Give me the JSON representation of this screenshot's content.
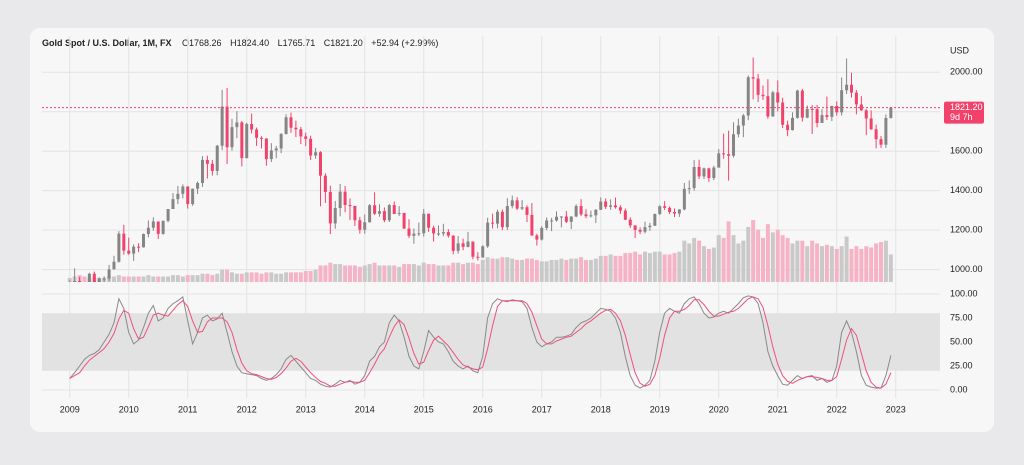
{
  "chart_data": {
    "type": "candlestick",
    "title": "Gold Spot / U.S. Dollar, 1M, FX",
    "header": {
      "open": "O1768.26",
      "high": "H1824.40",
      "low": "L1765.71",
      "close": "C1821.20",
      "change": "+52.94 (+2.99%)"
    },
    "unit": "USD",
    "price_tag": {
      "value": 1821.2,
      "label": "1821.20",
      "countdown": "9d 7h",
      "color": "#f2416b"
    },
    "up_color": "#858585",
    "down_color": "#f2416b",
    "volume_up_color": "#c9c9c9",
    "volume_down_color": "#f7b3c6",
    "grid": true,
    "xlim": [
      2008.53,
      2023.75
    ],
    "xticks": [
      2009,
      2010,
      2011,
      2012,
      2013,
      2014,
      2015,
      2016,
      2017,
      2018,
      2019,
      2020,
      2021,
      2022,
      2023
    ],
    "ylim": [
      937,
      2184
    ],
    "yticks": [
      {
        "value": 1000,
        "label": "1000.00"
      },
      {
        "value": 1200,
        "label": "1200.00"
      },
      {
        "value": 1400,
        "label": "1400.00"
      },
      {
        "value": 1600,
        "label": "1600.00"
      },
      {
        "value": 1800,
        "label": "1800.00"
      },
      {
        "value": 2000,
        "label": "2000.00"
      }
    ],
    "x": [
      2009,
      2009.083,
      2009.167,
      2009.25,
      2009.333,
      2009.417,
      2009.5,
      2009.583,
      2009.667,
      2009.75,
      2009.833,
      2009.917,
      2010,
      2010.083,
      2010.167,
      2010.25,
      2010.333,
      2010.417,
      2010.5,
      2010.583,
      2010.667,
      2010.75,
      2010.833,
      2010.917,
      2011,
      2011.083,
      2011.167,
      2011.25,
      2011.333,
      2011.417,
      2011.5,
      2011.583,
      2011.667,
      2011.75,
      2011.833,
      2011.917,
      2012,
      2012.083,
      2012.167,
      2012.25,
      2012.333,
      2012.417,
      2012.5,
      2012.583,
      2012.667,
      2012.75,
      2012.833,
      2012.917,
      2013,
      2013.083,
      2013.167,
      2013.25,
      2013.333,
      2013.417,
      2013.5,
      2013.583,
      2013.667,
      2013.75,
      2013.833,
      2013.917,
      2014,
      2014.083,
      2014.167,
      2014.25,
      2014.333,
      2014.417,
      2014.5,
      2014.583,
      2014.667,
      2014.75,
      2014.833,
      2014.917,
      2015,
      2015.083,
      2015.167,
      2015.25,
      2015.333,
      2015.417,
      2015.5,
      2015.583,
      2015.667,
      2015.75,
      2015.833,
      2015.917,
      2016,
      2016.083,
      2016.167,
      2016.25,
      2016.333,
      2016.417,
      2016.5,
      2016.583,
      2016.667,
      2016.75,
      2016.833,
      2016.917,
      2017,
      2017.083,
      2017.167,
      2017.25,
      2017.333,
      2017.417,
      2017.5,
      2017.583,
      2017.667,
      2017.75,
      2017.833,
      2017.917,
      2018,
      2018.083,
      2018.167,
      2018.25,
      2018.333,
      2018.417,
      2018.5,
      2018.583,
      2018.667,
      2018.75,
      2018.833,
      2018.917,
      2019,
      2019.083,
      2019.167,
      2019.25,
      2019.333,
      2019.417,
      2019.5,
      2019.583,
      2019.667,
      2019.75,
      2019.833,
      2019.917,
      2020,
      2020.083,
      2020.167,
      2020.25,
      2020.333,
      2020.417,
      2020.5,
      2020.583,
      2020.667,
      2020.75,
      2020.833,
      2020.917,
      2021,
      2021.083,
      2021.167,
      2021.25,
      2021.333,
      2021.417,
      2021.5,
      2021.583,
      2021.667,
      2021.75,
      2021.833,
      2021.917,
      2022,
      2022.083,
      2022.167,
      2022.25,
      2022.333,
      2022.417,
      2022.5,
      2022.583,
      2022.667,
      2022.75,
      2022.833,
      2022.917
    ],
    "open": [
      869,
      927,
      942,
      916,
      884,
      979,
      927,
      955,
      955,
      1001,
      1040,
      1182,
      1096,
      1081,
      1116,
      1113,
      1180,
      1212,
      1244,
      1181,
      1247,
      1307,
      1357,
      1384,
      1421,
      1332,
      1410,
      1439,
      1556,
      1536,
      1500,
      1628,
      1826,
      1620,
      1722,
      1746,
      1565,
      1738,
      1710,
      1668,
      1664,
      1560,
      1604,
      1614,
      1687,
      1772,
      1719,
      1711,
      1675,
      1663,
      1578,
      1595,
      1476,
      1393,
      1234,
      1312,
      1395,
      1327,
      1323,
      1250,
      1202,
      1240,
      1326,
      1283,
      1296,
      1250,
      1327,
      1282,
      1287,
      1208,
      1171,
      1182,
      1184,
      1283,
      1212,
      1183,
      1183,
      1190,
      1172,
      1095,
      1133,
      1115,
      1142,
      1065,
      1061,
      1118,
      1238,
      1233,
      1293,
      1215,
      1322,
      1351,
      1309,
      1316,
      1277,
      1173,
      1152,
      1211,
      1249,
      1249,
      1268,
      1269,
      1242,
      1269,
      1322,
      1280,
      1271,
      1275,
      1303,
      1345,
      1318,
      1325,
      1316,
      1299,
      1253,
      1224,
      1201,
      1192,
      1215,
      1222,
      1282,
      1321,
      1313,
      1292,
      1284,
      1305,
      1409,
      1413,
      1520,
      1472,
      1513,
      1464,
      1517,
      1589,
      1585,
      1577,
      1686,
      1730,
      1781,
      1975,
      1968,
      1886,
      1879,
      1776,
      1898,
      1847,
      1734,
      1707,
      1769,
      1907,
      1770,
      1814,
      1813,
      1743,
      1783,
      1774,
      1829,
      1797,
      1909,
      1937,
      1897,
      1837,
      1807,
      1766,
      1711,
      1661,
      1633,
      1768.26
    ],
    "high": [
      945,
      1006,
      963,
      917,
      984,
      990,
      960,
      966,
      1024,
      1070,
      1195,
      1227,
      1162,
      1128,
      1134,
      1183,
      1249,
      1265,
      1243,
      1249,
      1307,
      1388,
      1424,
      1432,
      1423,
      1411,
      1447,
      1575,
      1577,
      1556,
      1632,
      1911,
      1921,
      1764,
      1803,
      1753,
      1744,
      1791,
      1720,
      1676,
      1666,
      1641,
      1627,
      1692,
      1787,
      1796,
      1755,
      1723,
      1694,
      1679,
      1617,
      1600,
      1488,
      1425,
      1348,
      1434,
      1424,
      1361,
      1322,
      1267,
      1280,
      1332,
      1392,
      1331,
      1315,
      1332,
      1345,
      1322,
      1288,
      1255,
      1208,
      1238,
      1307,
      1284,
      1223,
      1224,
      1232,
      1205,
      1174,
      1170,
      1157,
      1191,
      1142,
      1088,
      1123,
      1263,
      1283,
      1304,
      1304,
      1362,
      1375,
      1367,
      1352,
      1326,
      1337,
      1181,
      1220,
      1264,
      1262,
      1295,
      1271,
      1297,
      1270,
      1331,
      1357,
      1306,
      1299,
      1307,
      1366,
      1361,
      1356,
      1365,
      1326,
      1309,
      1265,
      1224,
      1214,
      1243,
      1237,
      1284,
      1326,
      1347,
      1320,
      1310,
      1306,
      1439,
      1452,
      1555,
      1557,
      1517,
      1516,
      1526,
      1611,
      1689,
      1704,
      1747,
      1765,
      1789,
      1984,
      2075,
      1992,
      1933,
      1965,
      1906,
      1959,
      1871,
      1755,
      1797,
      1912,
      1916,
      1832,
      1834,
      1834,
      1813,
      1877,
      1831,
      1853,
      1974,
      2070,
      1998,
      1910,
      1879,
      1814,
      1807,
      1735,
      1677,
      1786,
      1824.4
    ],
    "low": [
      810,
      916,
      866,
      866,
      874,
      910,
      908,
      931,
      943,
      1003,
      1035,
      1075,
      1075,
      1044,
      1088,
      1111,
      1164,
      1196,
      1155,
      1177,
      1240,
      1314,
      1332,
      1361,
      1309,
      1323,
      1383,
      1419,
      1462,
      1477,
      1478,
      1606,
      1535,
      1603,
      1666,
      1523,
      1563,
      1690,
      1627,
      1614,
      1527,
      1545,
      1564,
      1590,
      1685,
      1693,
      1672,
      1636,
      1626,
      1555,
      1562,
      1321,
      1338,
      1180,
      1207,
      1270,
      1291,
      1251,
      1221,
      1182,
      1182,
      1238,
      1277,
      1268,
      1240,
      1241,
      1281,
      1271,
      1206,
      1160,
      1131,
      1170,
      1167,
      1191,
      1142,
      1170,
      1169,
      1162,
      1077,
      1081,
      1098,
      1113,
      1052,
      1046,
      1061,
      1110,
      1208,
      1209,
      1200,
      1200,
      1310,
      1302,
      1302,
      1241,
      1171,
      1122,
      1147,
      1200,
      1195,
      1243,
      1214,
      1236,
      1205,
      1265,
      1271,
      1260,
      1264,
      1236,
      1302,
      1307,
      1303,
      1309,
      1282,
      1251,
      1211,
      1160,
      1180,
      1183,
      1196,
      1221,
      1276,
      1302,
      1281,
      1266,
      1267,
      1300,
      1384,
      1400,
      1459,
      1459,
      1445,
      1454,
      1517,
      1562,
      1451,
      1568,
      1670,
      1671,
      1757,
      1863,
      1849,
      1860,
      1764,
      1775,
      1802,
      1717,
      1676,
      1705,
      1765,
      1750,
      1767,
      1687,
      1721,
      1746,
      1758,
      1753,
      1780,
      1781,
      1890,
      1872,
      1787,
      1805,
      1681,
      1709,
      1615,
      1617,
      1616,
      1765.71
    ],
    "close": [
      927,
      942,
      916,
      884,
      979,
      927,
      955,
      955,
      1001,
      1040,
      1182,
      1096,
      1081,
      1116,
      1113,
      1180,
      1212,
      1244,
      1181,
      1247,
      1307,
      1357,
      1384,
      1421,
      1332,
      1410,
      1439,
      1556,
      1536,
      1500,
      1628,
      1826,
      1620,
      1722,
      1746,
      1565,
      1738,
      1710,
      1668,
      1664,
      1560,
      1604,
      1614,
      1687,
      1772,
      1719,
      1711,
      1675,
      1663,
      1578,
      1595,
      1476,
      1393,
      1234,
      1312,
      1395,
      1327,
      1323,
      1250,
      1202,
      1240,
      1326,
      1283,
      1296,
      1250,
      1327,
      1282,
      1287,
      1208,
      1171,
      1182,
      1184,
      1283,
      1212,
      1183,
      1183,
      1190,
      1172,
      1095,
      1133,
      1115,
      1142,
      1065,
      1061,
      1118,
      1238,
      1233,
      1293,
      1215,
      1322,
      1351,
      1309,
      1316,
      1277,
      1173,
      1152,
      1211,
      1249,
      1249,
      1268,
      1269,
      1242,
      1269,
      1322,
      1280,
      1271,
      1275,
      1303,
      1345,
      1318,
      1325,
      1316,
      1299,
      1253,
      1224,
      1201,
      1192,
      1215,
      1222,
      1282,
      1321,
      1313,
      1292,
      1284,
      1305,
      1409,
      1413,
      1520,
      1472,
      1513,
      1464,
      1517,
      1589,
      1585,
      1577,
      1686,
      1730,
      1781,
      1975,
      1968,
      1886,
      1879,
      1776,
      1898,
      1847,
      1734,
      1707,
      1769,
      1907,
      1770,
      1814,
      1813,
      1743,
      1783,
      1774,
      1829,
      1797,
      1909,
      1937,
      1897,
      1837,
      1807,
      1766,
      1711,
      1661,
      1633,
      1768.26,
      1821.2
    ],
    "volume": [
      3,
      4,
      5,
      4,
      3,
      3,
      3,
      3,
      4,
      4,
      5,
      4,
      4,
      4,
      4,
      4,
      5,
      4,
      4,
      4,
      4,
      5,
      5,
      4,
      5,
      5,
      5,
      6,
      6,
      5,
      6,
      9,
      9,
      7,
      6,
      6,
      7,
      7,
      7,
      6,
      7,
      7,
      6,
      6,
      7,
      7,
      7,
      7,
      8,
      8,
      9,
      12,
      12,
      14,
      13,
      13,
      12,
      12,
      12,
      11,
      12,
      13,
      14,
      12,
      12,
      12,
      12,
      11,
      13,
      13,
      13,
      12,
      14,
      13,
      13,
      12,
      12,
      12,
      14,
      14,
      13,
      14,
      14,
      13,
      16,
      18,
      17,
      17,
      18,
      18,
      17,
      16,
      16,
      17,
      17,
      16,
      15,
      15,
      16,
      16,
      17,
      16,
      17,
      17,
      18,
      16,
      16,
      17,
      19,
      19,
      20,
      19,
      19,
      21,
      21,
      22,
      20,
      22,
      21,
      22,
      22,
      20,
      20,
      21,
      22,
      30,
      28,
      32,
      30,
      26,
      24,
      25,
      34,
      32,
      44,
      34,
      28,
      30,
      40,
      45,
      38,
      32,
      42,
      36,
      38,
      34,
      32,
      28,
      30,
      30,
      26,
      30,
      28,
      26,
      27,
      26,
      24,
      26,
      33,
      24,
      26,
      24,
      26,
      25,
      28,
      29,
      30,
      20
    ],
    "stochastic": {
      "type": "line",
      "ylim": [
        0,
        100
      ],
      "yticks": [
        {
          "value": 0,
          "label": "0.00"
        },
        {
          "value": 25,
          "label": "25.00"
        },
        {
          "value": 50,
          "label": "50.00"
        },
        {
          "value": 75,
          "label": "75.00"
        },
        {
          "value": 100,
          "label": "100.00"
        }
      ],
      "band": [
        20,
        80
      ],
      "band_color": "#e2e2e2",
      "series": [
        {
          "color": "#8a8a8a",
          "values": [
            12,
            18,
            25,
            32,
            36,
            38,
            42,
            50,
            58,
            70,
            95,
            85,
            60,
            48,
            52,
            65,
            80,
            88,
            72,
            75,
            85,
            90,
            93,
            97,
            72,
            48,
            60,
            75,
            78,
            72,
            74,
            80,
            60,
            40,
            25,
            18,
            17,
            16,
            15,
            12,
            10,
            12,
            16,
            22,
            32,
            36,
            30,
            24,
            18,
            12,
            10,
            6,
            4,
            3,
            6,
            10,
            8,
            10,
            6,
            8,
            15,
            30,
            35,
            45,
            50,
            70,
            78,
            72,
            55,
            35,
            25,
            22,
            40,
            62,
            55,
            50,
            48,
            40,
            30,
            25,
            22,
            25,
            20,
            18,
            35,
            75,
            90,
            95,
            93,
            92,
            94,
            93,
            92,
            85,
            65,
            50,
            45,
            48,
            50,
            55,
            55,
            56,
            58,
            65,
            70,
            72,
            75,
            80,
            85,
            84,
            82,
            75,
            60,
            35,
            15,
            5,
            2,
            5,
            10,
            30,
            60,
            80,
            85,
            82,
            80,
            90,
            95,
            97,
            90,
            80,
            75,
            76,
            80,
            82,
            80,
            85,
            90,
            96,
            98,
            97,
            90,
            70,
            40,
            25,
            15,
            6,
            5,
            10,
            15,
            12,
            14,
            15,
            10,
            12,
            8,
            10,
            25,
            60,
            72,
            60,
            40,
            15,
            5,
            3,
            2,
            2,
            15,
            36
          ]
        },
        {
          "color": "#f0507a",
          "values": [
            12,
            15,
            18,
            25,
            31,
            35,
            39,
            43,
            50,
            59,
            74,
            83,
            80,
            64,
            53,
            55,
            66,
            78,
            80,
            78,
            77,
            83,
            89,
            93,
            87,
            72,
            60,
            61,
            71,
            75,
            75,
            75,
            71,
            60,
            42,
            28,
            20,
            17,
            16,
            14,
            12,
            11,
            13,
            17,
            23,
            30,
            33,
            30,
            24,
            18,
            13,
            9,
            7,
            4,
            4,
            6,
            8,
            9,
            8,
            8,
            10,
            18,
            27,
            37,
            43,
            55,
            66,
            73,
            68,
            54,
            38,
            27,
            29,
            41,
            52,
            56,
            51,
            46,
            39,
            32,
            26,
            24,
            22,
            21,
            24,
            43,
            67,
            87,
            93,
            93,
            93,
            93,
            93,
            90,
            81,
            67,
            53,
            48,
            48,
            51,
            53,
            55,
            56,
            60,
            64,
            69,
            72,
            76,
            80,
            83,
            84,
            80,
            72,
            57,
            37,
            18,
            7,
            4,
            6,
            15,
            33,
            57,
            75,
            82,
            82,
            84,
            88,
            94,
            94,
            89,
            82,
            77,
            77,
            79,
            81,
            82,
            85,
            90,
            95,
            97,
            95,
            86,
            67,
            45,
            27,
            15,
            9,
            7,
            10,
            12,
            14,
            14,
            13,
            12,
            10,
            10,
            14,
            32,
            52,
            64,
            57,
            38,
            20,
            8,
            3,
            2,
            6,
            18
          ]
        }
      ]
    }
  }
}
